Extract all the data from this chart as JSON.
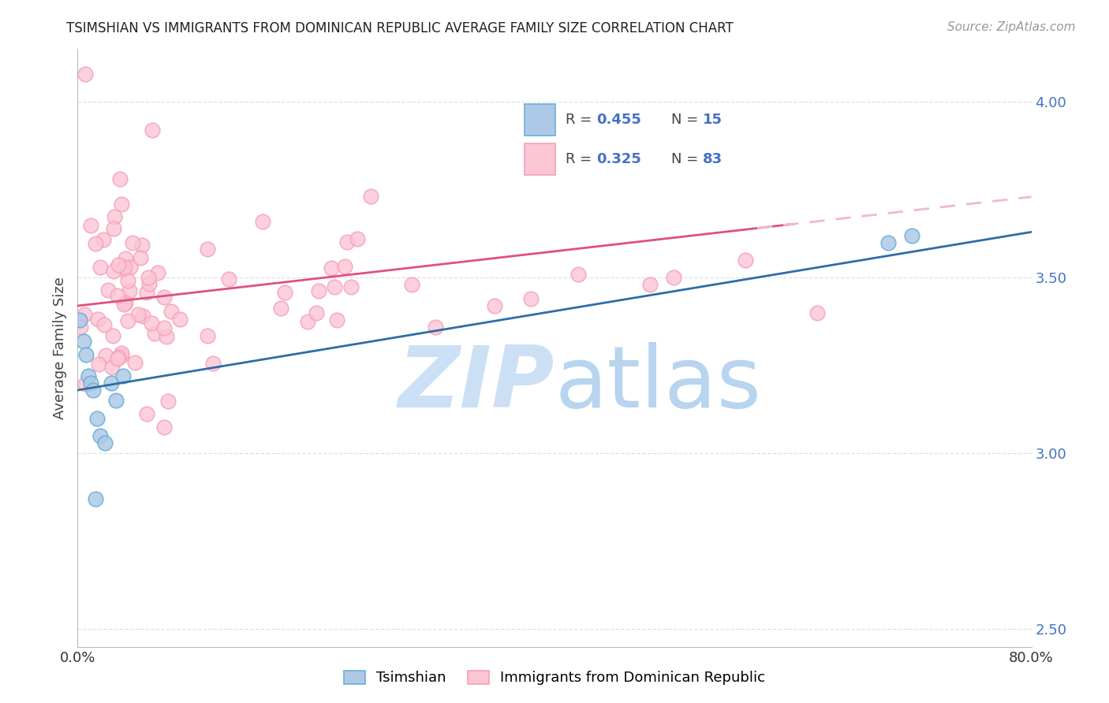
{
  "title": "TSIMSHIAN VS IMMIGRANTS FROM DOMINICAN REPUBLIC AVERAGE FAMILY SIZE CORRELATION CHART",
  "source": "Source: ZipAtlas.com",
  "ylabel": "Average Family Size",
  "right_yticks": [
    2.5,
    3.0,
    3.5,
    4.0
  ],
  "right_ytick_labels": [
    "2.50",
    "3.00",
    "3.50",
    "4.00"
  ],
  "blue_face": "#aec9e8",
  "blue_edge": "#6baed6",
  "pink_face": "#fcc5d4",
  "pink_edge": "#f4a0b8",
  "blue_line_color": "#2e6da4",
  "pink_line_color": "#e05080",
  "pink_dash_color": "#f0b8cc",
  "watermark_zip_color": "#cce0f5",
  "watermark_atlas_color": "#b8d4ef",
  "background_color": "#ffffff",
  "grid_color": "#e0e0e0",
  "xlim": [
    0,
    80
  ],
  "ylim": [
    2.45,
    4.15
  ],
  "figsize": [
    14.06,
    8.92
  ],
  "dpi": 100,
  "blue_trend_x0": 0,
  "blue_trend_y0": 3.18,
  "blue_trend_x1": 80,
  "blue_trend_y1": 3.63,
  "pink_trend_x0": 0,
  "pink_trend_y0": 3.42,
  "pink_trend_x1": 80,
  "pink_trend_y1": 3.73,
  "pink_solid_end": 60,
  "pink_dash_start": 57
}
